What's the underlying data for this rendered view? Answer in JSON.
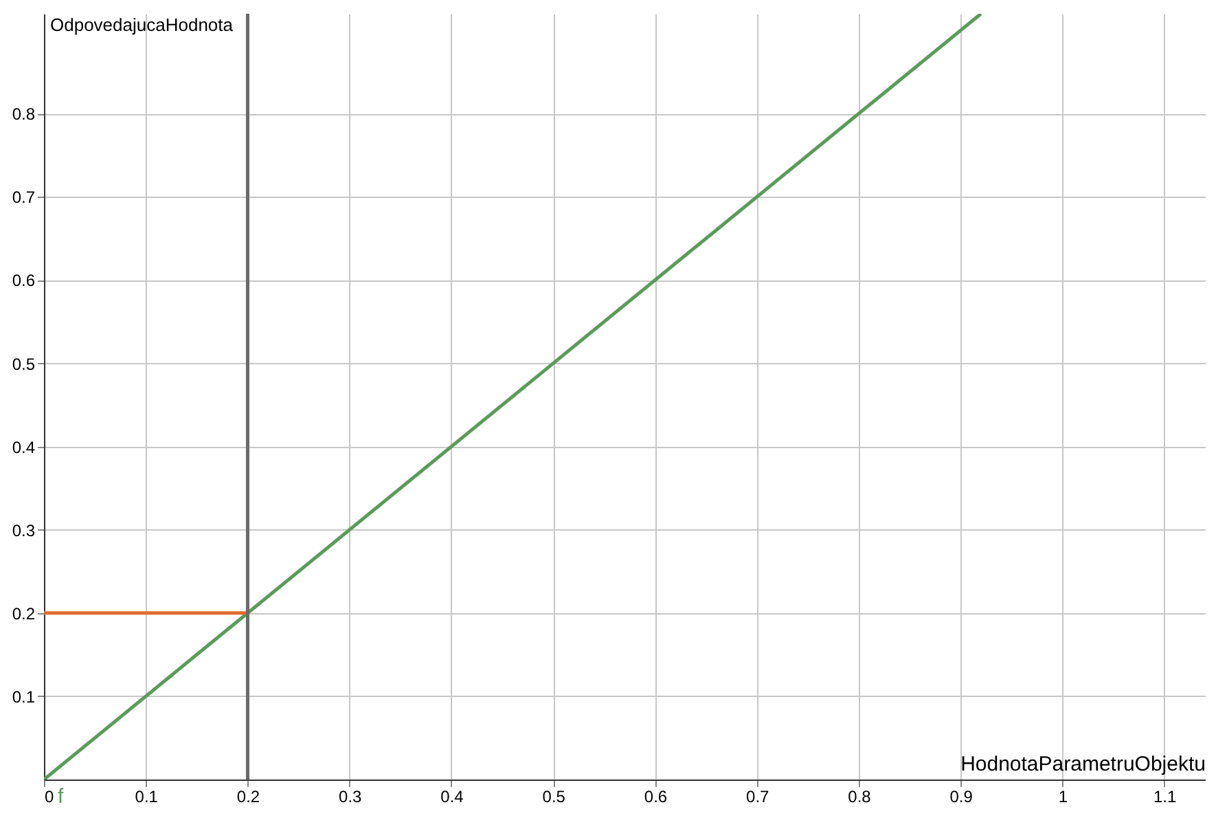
{
  "chart_data": {
    "type": "line",
    "xlabel": "HodnotaParametruObjektu",
    "ylabel": "OdpovedajucaHodnota",
    "xlim": [
      0,
      1.14
    ],
    "ylim": [
      0,
      0.92
    ],
    "xticks": [
      0,
      0.1,
      0.2,
      0.3,
      0.4,
      0.5,
      0.6,
      0.7,
      0.8,
      0.9,
      1,
      1.1
    ],
    "yticks": [
      0.1,
      0.2,
      0.3,
      0.4,
      0.5,
      0.6,
      0.7,
      0.8
    ],
    "series": [
      {
        "name": "f",
        "color": "#5b9b5b",
        "x": [
          0,
          0.92
        ],
        "values": [
          0,
          0.92
        ]
      },
      {
        "color": "#e06c2c",
        "x": [
          0,
          0.2
        ],
        "values": [
          0.2,
          0.2
        ]
      }
    ],
    "ref_lines": [
      {
        "axis": "x",
        "value": 0.2,
        "color": "#6b6b6b"
      }
    ],
    "grid": true,
    "line_style": "solid",
    "marker": "none"
  }
}
